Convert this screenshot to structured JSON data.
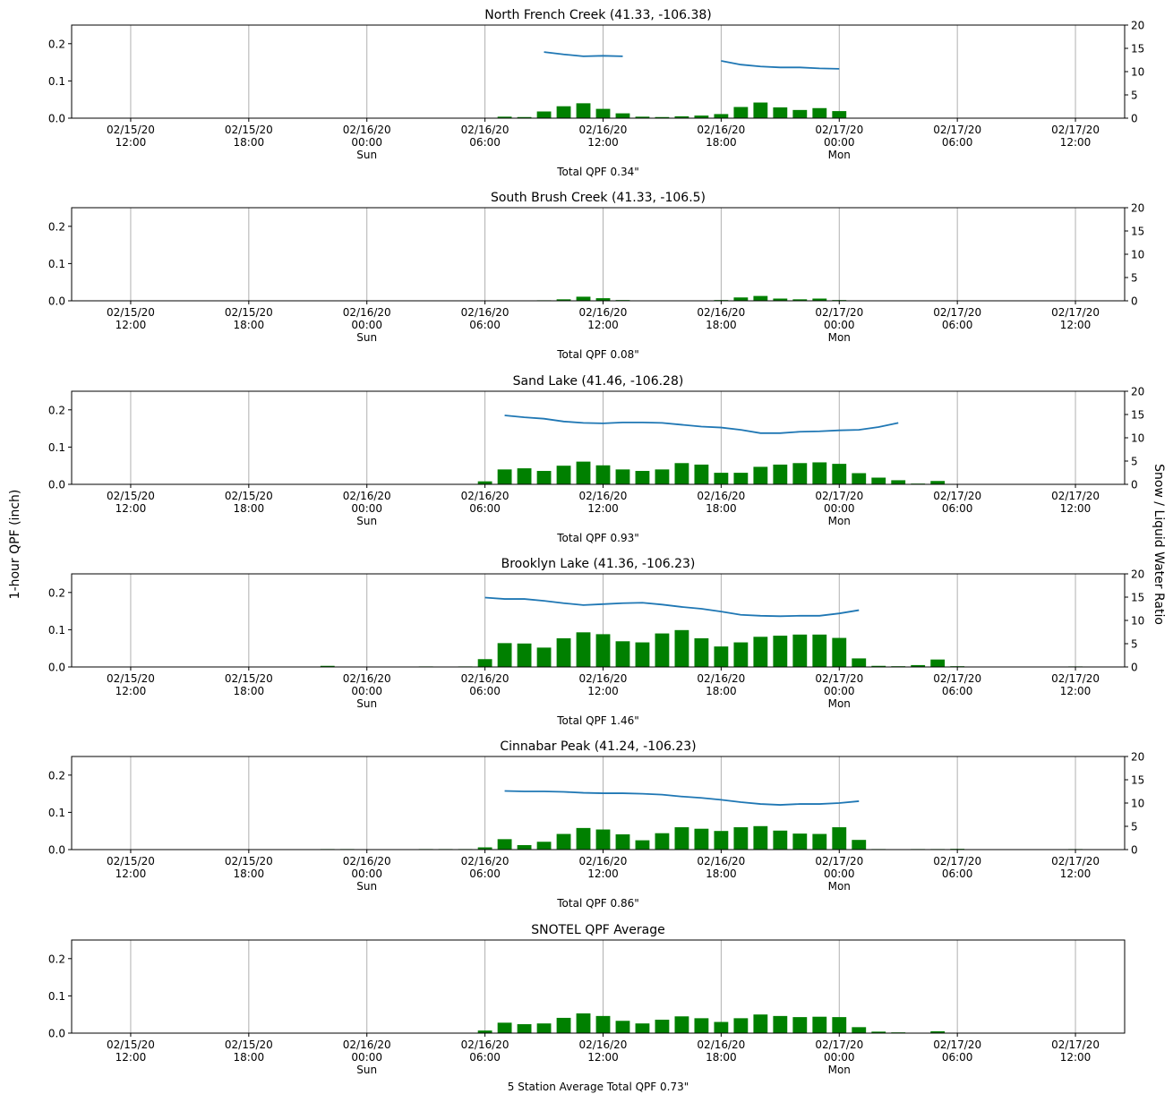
{
  "figure": {
    "left_ylabel": "1-hour QPF (inch)",
    "right_ylabel": "Snow / Liquid Water Ratio",
    "y_ticks": [
      "0.0",
      "0.1",
      "0.2"
    ],
    "ratio_ticks": [
      "0",
      "5",
      "10",
      "15",
      "20"
    ],
    "x_ticks": [
      {
        "hour": 12,
        "date": "02/15/20",
        "time": "12:00",
        "day": ""
      },
      {
        "hour": 18,
        "date": "02/15/20",
        "time": "18:00",
        "day": ""
      },
      {
        "hour": 24,
        "date": "02/16/20",
        "time": "00:00",
        "day": "Sun"
      },
      {
        "hour": 30,
        "date": "02/16/20",
        "time": "06:00",
        "day": ""
      },
      {
        "hour": 36,
        "date": "02/16/20",
        "time": "12:00",
        "day": ""
      },
      {
        "hour": 42,
        "date": "02/16/20",
        "time": "18:00",
        "day": ""
      },
      {
        "hour": 48,
        "date": "02/17/20",
        "time": "00:00",
        "day": "Mon"
      },
      {
        "hour": 54,
        "date": "02/17/20",
        "time": "06:00",
        "day": ""
      },
      {
        "hour": 60,
        "date": "02/17/20",
        "time": "12:00",
        "day": ""
      }
    ],
    "colors": {
      "bar": "#008000",
      "line": "#1f77b4",
      "grid": "#b0b0b0",
      "axis": "#000000"
    }
  },
  "chart_data": [
    {
      "type": "bar",
      "title": "North French Creek (41.33, -106.38)",
      "footer": "Total QPF 0.34\"",
      "x_start": "02/15/20 09:00",
      "ylim": [
        0,
        0.25
      ],
      "ratio_ylim": [
        0,
        20
      ],
      "qpf": [
        {
          "t": 31,
          "v": 0.004
        },
        {
          "t": 32,
          "v": 0.003
        },
        {
          "t": 33,
          "v": 0.018
        },
        {
          "t": 34,
          "v": 0.032
        },
        {
          "t": 35,
          "v": 0.04
        },
        {
          "t": 36,
          "v": 0.025
        },
        {
          "t": 37,
          "v": 0.013
        },
        {
          "t": 38,
          "v": 0.004
        },
        {
          "t": 39,
          "v": 0.003
        },
        {
          "t": 40,
          "v": 0.005
        },
        {
          "t": 41,
          "v": 0.007
        },
        {
          "t": 42,
          "v": 0.011
        },
        {
          "t": 43,
          "v": 0.03
        },
        {
          "t": 44,
          "v": 0.042
        },
        {
          "t": 45,
          "v": 0.029
        },
        {
          "t": 46,
          "v": 0.022
        },
        {
          "t": 47,
          "v": 0.027
        },
        {
          "t": 48,
          "v": 0.019
        }
      ],
      "ratio_segments": [
        [
          {
            "t": 33,
            "v": 14.2
          },
          {
            "t": 34,
            "v": 13.7
          },
          {
            "t": 35,
            "v": 13.3
          },
          {
            "t": 36,
            "v": 13.4
          },
          {
            "t": 37,
            "v": 13.3
          }
        ],
        [
          {
            "t": 42,
            "v": 12.3
          },
          {
            "t": 43,
            "v": 11.5
          },
          {
            "t": 44,
            "v": 11.1
          },
          {
            "t": 45,
            "v": 10.9
          },
          {
            "t": 46,
            "v": 10.9
          },
          {
            "t": 47,
            "v": 10.7
          },
          {
            "t": 48,
            "v": 10.6
          }
        ]
      ]
    },
    {
      "type": "bar",
      "title": "South Brush Creek (41.33, -106.5)",
      "footer": "Total QPF 0.08\"",
      "x_start": "02/15/20 09:00",
      "ylim": [
        0,
        0.25
      ],
      "ratio_ylim": [
        0,
        20
      ],
      "qpf": [
        {
          "t": 33,
          "v": 0.001
        },
        {
          "t": 34,
          "v": 0.004
        },
        {
          "t": 35,
          "v": 0.011
        },
        {
          "t": 36,
          "v": 0.007
        },
        {
          "t": 37,
          "v": 0.002
        },
        {
          "t": 42,
          "v": 0.002
        },
        {
          "t": 43,
          "v": 0.009
        },
        {
          "t": 44,
          "v": 0.013
        },
        {
          "t": 45,
          "v": 0.006
        },
        {
          "t": 46,
          "v": 0.004
        },
        {
          "t": 47,
          "v": 0.006
        },
        {
          "t": 48,
          "v": 0.002
        }
      ],
      "ratio_segments": []
    },
    {
      "type": "bar",
      "title": "Sand Lake (41.46, -106.28)",
      "footer": "Total QPF 0.93\"",
      "x_start": "02/15/20 09:00",
      "ylim": [
        0,
        0.25
      ],
      "ratio_ylim": [
        0,
        20
      ],
      "qpf": [
        {
          "t": 30,
          "v": 0.008
        },
        {
          "t": 31,
          "v": 0.04
        },
        {
          "t": 32,
          "v": 0.043
        },
        {
          "t": 33,
          "v": 0.036
        },
        {
          "t": 34,
          "v": 0.05
        },
        {
          "t": 35,
          "v": 0.061
        },
        {
          "t": 36,
          "v": 0.051
        },
        {
          "t": 37,
          "v": 0.04
        },
        {
          "t": 38,
          "v": 0.036
        },
        {
          "t": 39,
          "v": 0.04
        },
        {
          "t": 40,
          "v": 0.057
        },
        {
          "t": 41,
          "v": 0.053
        },
        {
          "t": 42,
          "v": 0.031
        },
        {
          "t": 43,
          "v": 0.031
        },
        {
          "t": 44,
          "v": 0.047
        },
        {
          "t": 45,
          "v": 0.053
        },
        {
          "t": 46,
          "v": 0.057
        },
        {
          "t": 47,
          "v": 0.059
        },
        {
          "t": 48,
          "v": 0.055
        },
        {
          "t": 49,
          "v": 0.03
        },
        {
          "t": 50,
          "v": 0.018
        },
        {
          "t": 51,
          "v": 0.011
        },
        {
          "t": 52,
          "v": 0.002
        },
        {
          "t": 53,
          "v": 0.009
        }
      ],
      "ratio_segments": [
        [
          {
            "t": 31,
            "v": 14.8
          },
          {
            "t": 32,
            "v": 14.4
          },
          {
            "t": 33,
            "v": 14.1
          },
          {
            "t": 34,
            "v": 13.5
          },
          {
            "t": 35,
            "v": 13.2
          },
          {
            "t": 36,
            "v": 13.1
          },
          {
            "t": 37,
            "v": 13.3
          },
          {
            "t": 38,
            "v": 13.3
          },
          {
            "t": 39,
            "v": 13.2
          },
          {
            "t": 40,
            "v": 12.8
          },
          {
            "t": 41,
            "v": 12.4
          },
          {
            "t": 42,
            "v": 12.2
          },
          {
            "t": 43,
            "v": 11.7
          },
          {
            "t": 44,
            "v": 11.0
          },
          {
            "t": 45,
            "v": 11.0
          },
          {
            "t": 46,
            "v": 11.3
          },
          {
            "t": 47,
            "v": 11.4
          },
          {
            "t": 48,
            "v": 11.6
          },
          {
            "t": 49,
            "v": 11.7
          },
          {
            "t": 50,
            "v": 12.3
          },
          {
            "t": 51,
            "v": 13.2
          }
        ]
      ]
    },
    {
      "type": "bar",
      "title": "Brooklyn Lake (41.36, -106.23)",
      "footer": "Total QPF 1.46\"",
      "x_start": "02/15/20 09:00",
      "ylim": [
        0,
        0.25
      ],
      "ratio_ylim": [
        0,
        20
      ],
      "qpf": [
        {
          "t": 22,
          "v": 0.003
        },
        {
          "t": 27,
          "v": 0.001
        },
        {
          "t": 29,
          "v": 0.001
        },
        {
          "t": 30,
          "v": 0.021
        },
        {
          "t": 31,
          "v": 0.064
        },
        {
          "t": 32,
          "v": 0.063
        },
        {
          "t": 33,
          "v": 0.052
        },
        {
          "t": 34,
          "v": 0.077
        },
        {
          "t": 35,
          "v": 0.093
        },
        {
          "t": 36,
          "v": 0.088
        },
        {
          "t": 37,
          "v": 0.069
        },
        {
          "t": 38,
          "v": 0.066
        },
        {
          "t": 39,
          "v": 0.09
        },
        {
          "t": 40,
          "v": 0.099
        },
        {
          "t": 41,
          "v": 0.077
        },
        {
          "t": 42,
          "v": 0.055
        },
        {
          "t": 43,
          "v": 0.066
        },
        {
          "t": 44,
          "v": 0.081
        },
        {
          "t": 45,
          "v": 0.084
        },
        {
          "t": 46,
          "v": 0.087
        },
        {
          "t": 47,
          "v": 0.087
        },
        {
          "t": 48,
          "v": 0.078
        },
        {
          "t": 49,
          "v": 0.023
        },
        {
          "t": 50,
          "v": 0.003
        },
        {
          "t": 51,
          "v": 0.002
        },
        {
          "t": 52,
          "v": 0.005
        },
        {
          "t": 53,
          "v": 0.02
        },
        {
          "t": 54,
          "v": 0.002
        },
        {
          "t": 60,
          "v": 0.001
        }
      ],
      "ratio_segments": [
        [
          {
            "t": 30,
            "v": 14.9
          },
          {
            "t": 31,
            "v": 14.6
          },
          {
            "t": 32,
            "v": 14.6
          },
          {
            "t": 33,
            "v": 14.2
          },
          {
            "t": 34,
            "v": 13.7
          },
          {
            "t": 35,
            "v": 13.3
          },
          {
            "t": 36,
            "v": 13.5
          },
          {
            "t": 37,
            "v": 13.7
          },
          {
            "t": 38,
            "v": 13.8
          },
          {
            "t": 39,
            "v": 13.4
          },
          {
            "t": 40,
            "v": 12.9
          },
          {
            "t": 41,
            "v": 12.5
          },
          {
            "t": 42,
            "v": 11.9
          },
          {
            "t": 43,
            "v": 11.2
          },
          {
            "t": 44,
            "v": 11.0
          },
          {
            "t": 45,
            "v": 10.9
          },
          {
            "t": 46,
            "v": 11.0
          },
          {
            "t": 47,
            "v": 11.0
          },
          {
            "t": 48,
            "v": 11.5
          },
          {
            "t": 49,
            "v": 12.2
          }
        ]
      ]
    },
    {
      "type": "bar",
      "title": "Cinnabar Peak (41.24, -106.23)",
      "footer": "Total QPF 0.86\"",
      "x_start": "02/15/20 09:00",
      "ylim": [
        0,
        0.25
      ],
      "ratio_ylim": [
        0,
        20
      ],
      "qpf": [
        {
          "t": 22,
          "v": 0.001
        },
        {
          "t": 23,
          "v": 0.001
        },
        {
          "t": 27,
          "v": 0.001
        },
        {
          "t": 28,
          "v": 0.001
        },
        {
          "t": 29,
          "v": 0.001
        },
        {
          "t": 30,
          "v": 0.006
        },
        {
          "t": 31,
          "v": 0.028
        },
        {
          "t": 32,
          "v": 0.012
        },
        {
          "t": 33,
          "v": 0.021
        },
        {
          "t": 34,
          "v": 0.042
        },
        {
          "t": 35,
          "v": 0.058
        },
        {
          "t": 36,
          "v": 0.054
        },
        {
          "t": 37,
          "v": 0.041
        },
        {
          "t": 38,
          "v": 0.025
        },
        {
          "t": 39,
          "v": 0.044
        },
        {
          "t": 40,
          "v": 0.06
        },
        {
          "t": 41,
          "v": 0.056
        },
        {
          "t": 42,
          "v": 0.05
        },
        {
          "t": 43,
          "v": 0.06
        },
        {
          "t": 44,
          "v": 0.063
        },
        {
          "t": 45,
          "v": 0.051
        },
        {
          "t": 46,
          "v": 0.043
        },
        {
          "t": 47,
          "v": 0.042
        },
        {
          "t": 48,
          "v": 0.06
        },
        {
          "t": 49,
          "v": 0.026
        },
        {
          "t": 50,
          "v": 0.001
        },
        {
          "t": 52,
          "v": 0.001
        },
        {
          "t": 53,
          "v": 0.001
        },
        {
          "t": 54,
          "v": 0.002
        },
        {
          "t": 60,
          "v": 0.001
        }
      ],
      "ratio_segments": [
        [
          {
            "t": 31,
            "v": 12.6
          },
          {
            "t": 32,
            "v": 12.5
          },
          {
            "t": 33,
            "v": 12.5
          },
          {
            "t": 34,
            "v": 12.4
          },
          {
            "t": 35,
            "v": 12.2
          },
          {
            "t": 36,
            "v": 12.1
          },
          {
            "t": 37,
            "v": 12.1
          },
          {
            "t": 38,
            "v": 12.0
          },
          {
            "t": 39,
            "v": 11.8
          },
          {
            "t": 40,
            "v": 11.4
          },
          {
            "t": 41,
            "v": 11.1
          },
          {
            "t": 42,
            "v": 10.7
          },
          {
            "t": 43,
            "v": 10.2
          },
          {
            "t": 44,
            "v": 9.8
          },
          {
            "t": 45,
            "v": 9.6
          },
          {
            "t": 46,
            "v": 9.8
          },
          {
            "t": 47,
            "v": 9.8
          },
          {
            "t": 48,
            "v": 10.0
          },
          {
            "t": 49,
            "v": 10.4
          }
        ]
      ]
    },
    {
      "type": "bar",
      "title": "SNOTEL QPF Average",
      "footer": "5 Station Average Total QPF 0.73\"",
      "x_start": "02/15/20 09:00",
      "ylim": [
        0,
        0.25
      ],
      "ratio_ylim": null,
      "qpf": [
        {
          "t": 30,
          "v": 0.007
        },
        {
          "t": 31,
          "v": 0.028
        },
        {
          "t": 32,
          "v": 0.024
        },
        {
          "t": 33,
          "v": 0.026
        },
        {
          "t": 34,
          "v": 0.041
        },
        {
          "t": 35,
          "v": 0.053
        },
        {
          "t": 36,
          "v": 0.046
        },
        {
          "t": 37,
          "v": 0.033
        },
        {
          "t": 38,
          "v": 0.026
        },
        {
          "t": 39,
          "v": 0.036
        },
        {
          "t": 40,
          "v": 0.045
        },
        {
          "t": 41,
          "v": 0.04
        },
        {
          "t": 42,
          "v": 0.03
        },
        {
          "t": 43,
          "v": 0.04
        },
        {
          "t": 44,
          "v": 0.05
        },
        {
          "t": 45,
          "v": 0.046
        },
        {
          "t": 46,
          "v": 0.043
        },
        {
          "t": 47,
          "v": 0.044
        },
        {
          "t": 48,
          "v": 0.043
        },
        {
          "t": 49,
          "v": 0.016
        },
        {
          "t": 50,
          "v": 0.004
        },
        {
          "t": 51,
          "v": 0.002
        },
        {
          "t": 53,
          "v": 0.005
        }
      ],
      "ratio_segments": []
    }
  ]
}
